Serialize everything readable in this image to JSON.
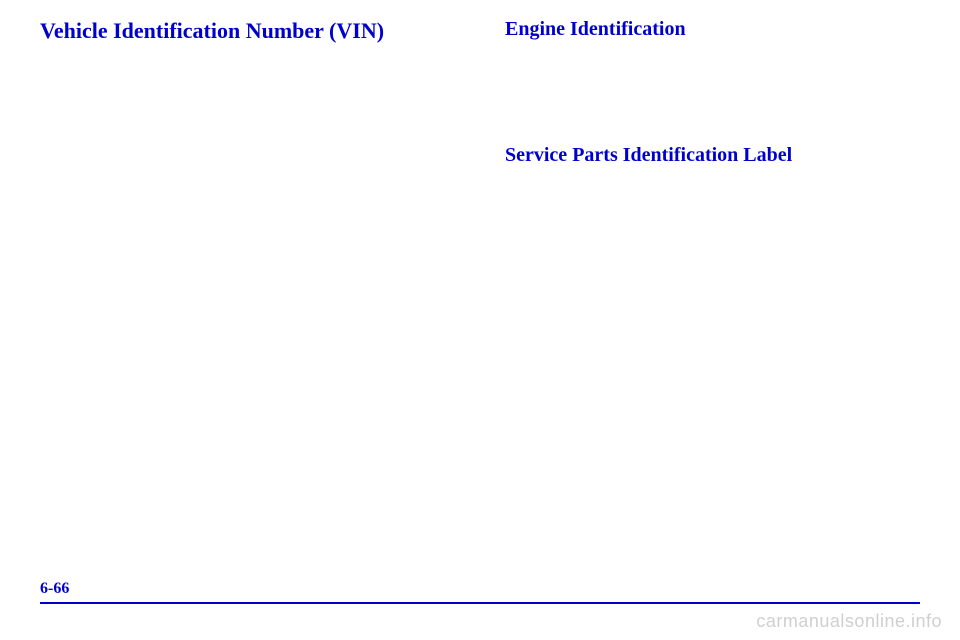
{
  "left_column": {
    "main_heading": "Vehicle Identification Number (VIN)"
  },
  "right_column": {
    "sub_heading_1": "Engine Identification",
    "sub_heading_2": "Service Parts Identification Label"
  },
  "page_number": "6-66",
  "watermark": "carmanualsonline.info",
  "colors": {
    "heading_color": "#0000cc",
    "rule_color": "#0000cc",
    "watermark_color": "#cfcfcf",
    "background": "#ffffff"
  },
  "typography": {
    "main_heading_fontsize": 22,
    "sub_heading_fontsize": 20,
    "page_number_fontsize": 16,
    "watermark_fontsize": 18,
    "font_family": "Times New Roman"
  }
}
